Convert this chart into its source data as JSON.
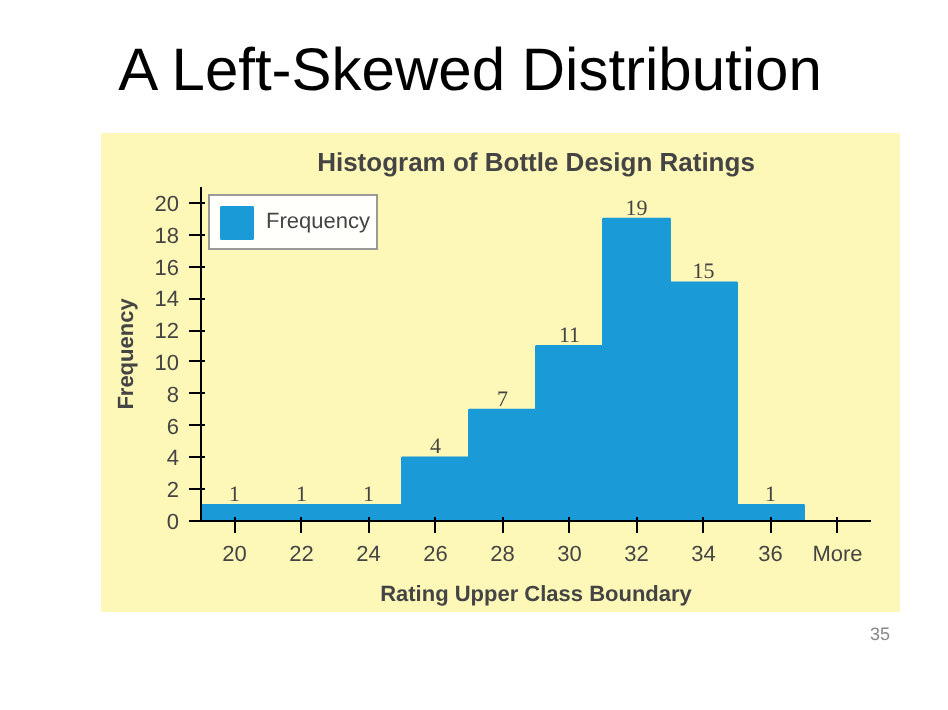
{
  "chart_data": {
    "type": "bar",
    "title": "Histogram of Bottle Design Ratings",
    "xlabel": "Rating Upper Class Boundary",
    "ylabel": "Frequency",
    "categories": [
      "20",
      "22",
      "24",
      "26",
      "28",
      "30",
      "32",
      "34",
      "36",
      "More"
    ],
    "series": [
      {
        "name": "Frequency",
        "color": "#1a9ad6",
        "values": [
          1,
          1,
          1,
          4,
          7,
          11,
          19,
          15,
          1,
          0
        ]
      }
    ],
    "value_labels": [
      "1",
      "1",
      "1",
      "4",
      "7",
      "11",
      "19",
      "15",
      "1",
      null
    ],
    "ylim": [
      0,
      21
    ],
    "yticks": [
      0,
      2,
      4,
      6,
      8,
      10,
      12,
      14,
      16,
      18,
      20
    ],
    "grid": false,
    "legend": "top left",
    "annotations": [
      "A Left-Skewed Distribution",
      "35"
    ]
  }
}
